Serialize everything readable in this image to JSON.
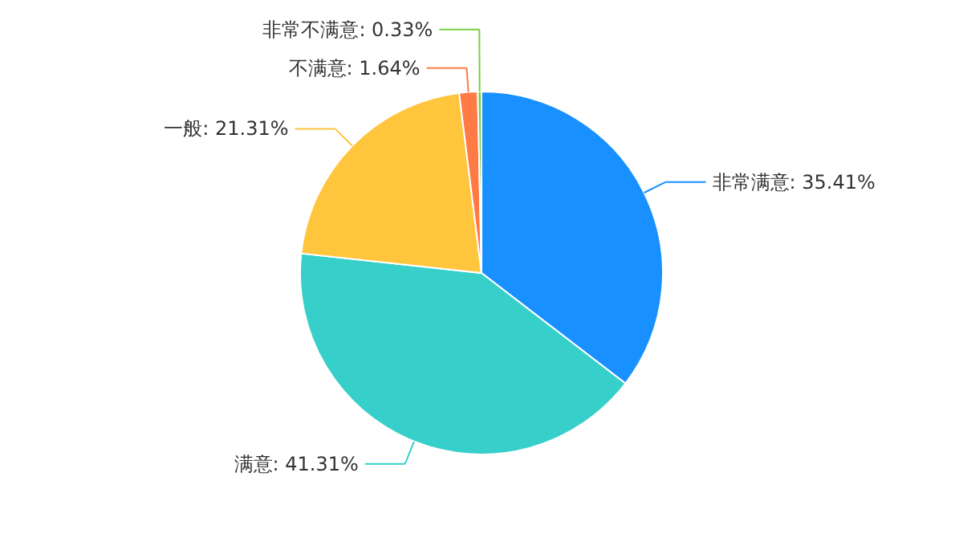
{
  "chart_data": {
    "type": "pie",
    "categories": [
      "非常满意",
      "满意",
      "一般",
      "不满意",
      "非常不满意"
    ],
    "values": [
      35.41,
      41.31,
      21.31,
      1.64,
      0.33
    ],
    "colors": [
      "#1890ff",
      "#36cfc9",
      "#ffc53d",
      "#ff7a45",
      "#73d13d"
    ],
    "value_labels": [
      "35.41%",
      "41.31%",
      "21.31%",
      "1.64%",
      "0.33%"
    ]
  }
}
